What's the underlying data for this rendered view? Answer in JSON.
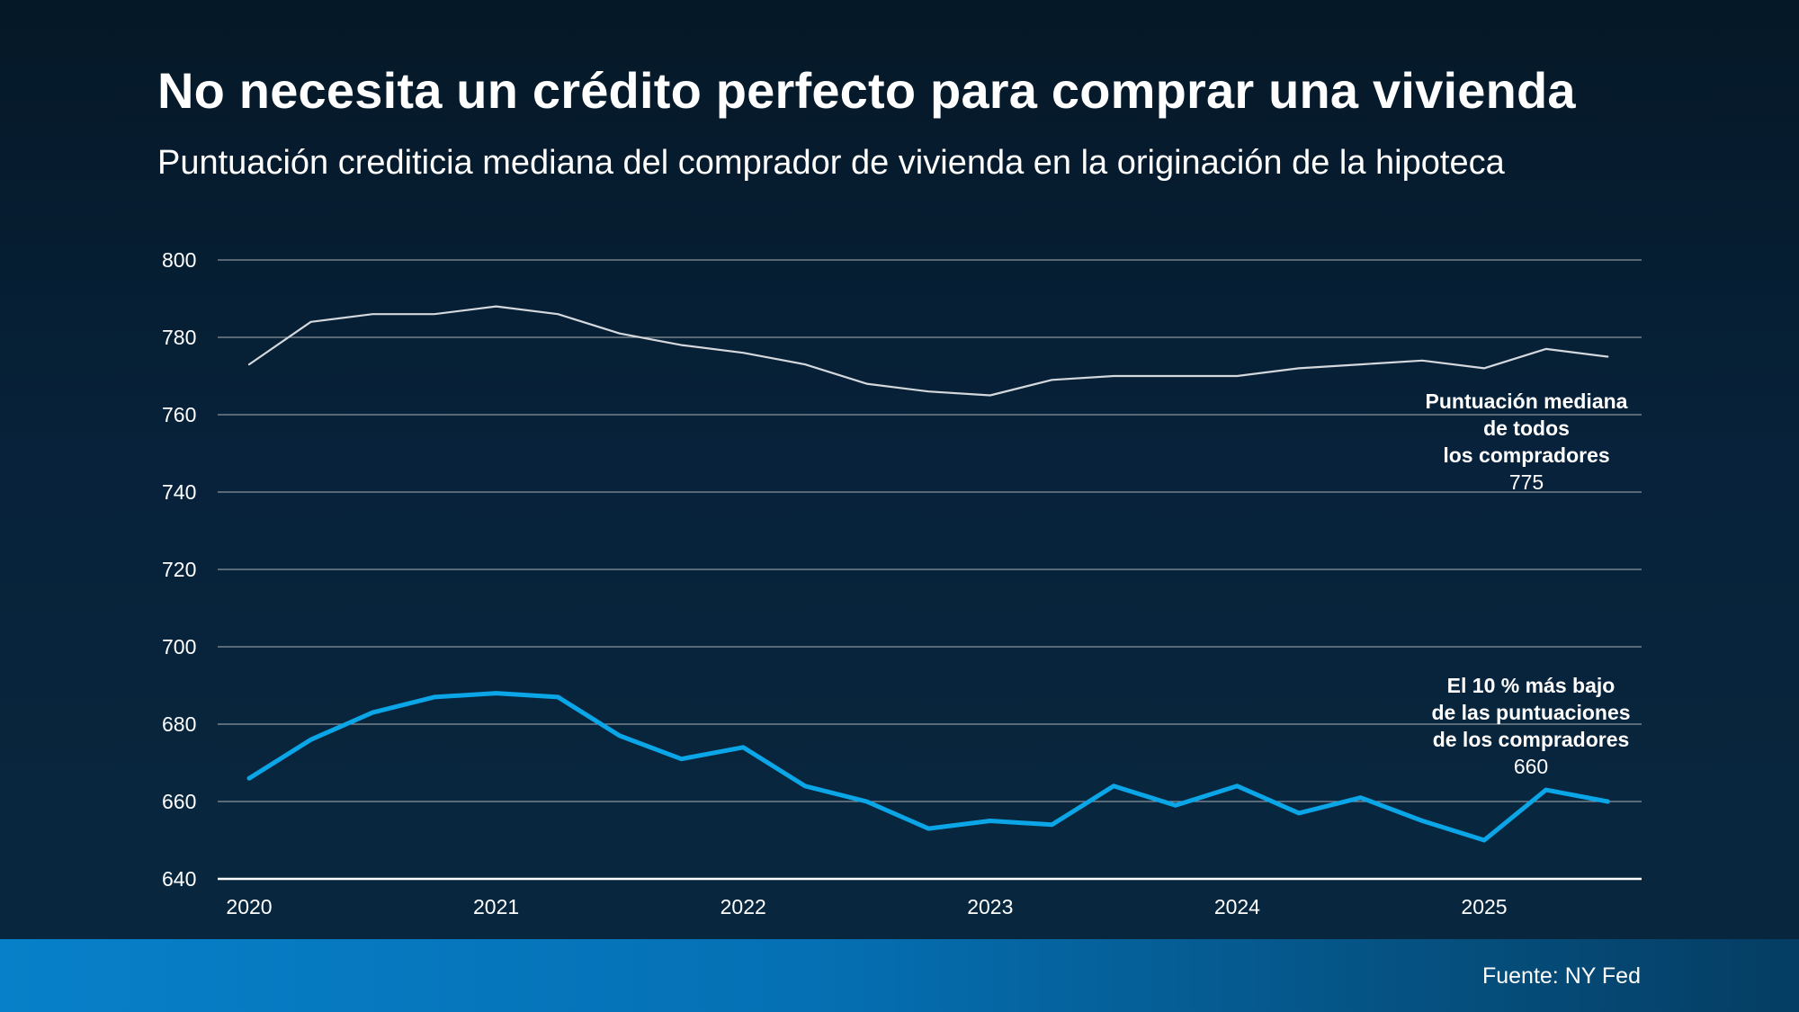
{
  "header": {
    "title": "No necesita un crédito perfecto para comprar una vivienda",
    "subtitle": "Puntuación crediticia mediana del comprador de vivienda en la originación de la hipoteca"
  },
  "footer": {
    "source": "Fuente: NY Fed"
  },
  "colors": {
    "background": "#07223a",
    "median_line": "#d4d8dc",
    "bottom10_line": "#0aa6e8",
    "gridline": "#8a949c",
    "footer_band": "#0780c9"
  },
  "chart_data": {
    "type": "line",
    "title": "No necesita un crédito perfecto para comprar una vivienda",
    "subtitle": "Puntuación crediticia mediana del comprador de vivienda en la originación de la hipoteca",
    "xlabel": "",
    "ylabel": "",
    "ylim": [
      640,
      800
    ],
    "yticks": [
      640,
      660,
      680,
      700,
      720,
      740,
      760,
      780,
      800
    ],
    "xlim": [
      2020,
      2025.75
    ],
    "xticks": [
      2020,
      2021,
      2022,
      2023,
      2024,
      2025
    ],
    "grid": true,
    "x": [
      2020.0,
      2020.25,
      2020.5,
      2020.75,
      2021.0,
      2021.25,
      2021.5,
      2021.75,
      2022.0,
      2022.25,
      2022.5,
      2022.75,
      2023.0,
      2023.25,
      2023.5,
      2023.75,
      2024.0,
      2024.25,
      2024.5,
      2024.75,
      2025.0,
      2025.25,
      2025.5
    ],
    "series": [
      {
        "name": "Puntuación mediana de todos los compradores",
        "label_lines": [
          "Puntuación mediana",
          "de todos",
          "los compradores"
        ],
        "last_value_label": "775",
        "color": "#d4d8dc",
        "values": [
          773,
          784,
          786,
          786,
          788,
          786,
          781,
          778,
          776,
          773,
          768,
          766,
          765,
          769,
          770,
          770,
          770,
          772,
          773,
          774,
          772,
          777,
          775
        ]
      },
      {
        "name": "El 10 % más bajo de las puntuaciones de los compradores",
        "label_lines": [
          "El 10 % más bajo",
          "de las puntuaciones",
          "de los compradores"
        ],
        "last_value_label": "660",
        "color": "#0aa6e8",
        "values": [
          666,
          676,
          683,
          687,
          688,
          687,
          677,
          671,
          674,
          664,
          660,
          653,
          655,
          654,
          664,
          659,
          664,
          657,
          661,
          655,
          650,
          663,
          660
        ]
      }
    ]
  }
}
